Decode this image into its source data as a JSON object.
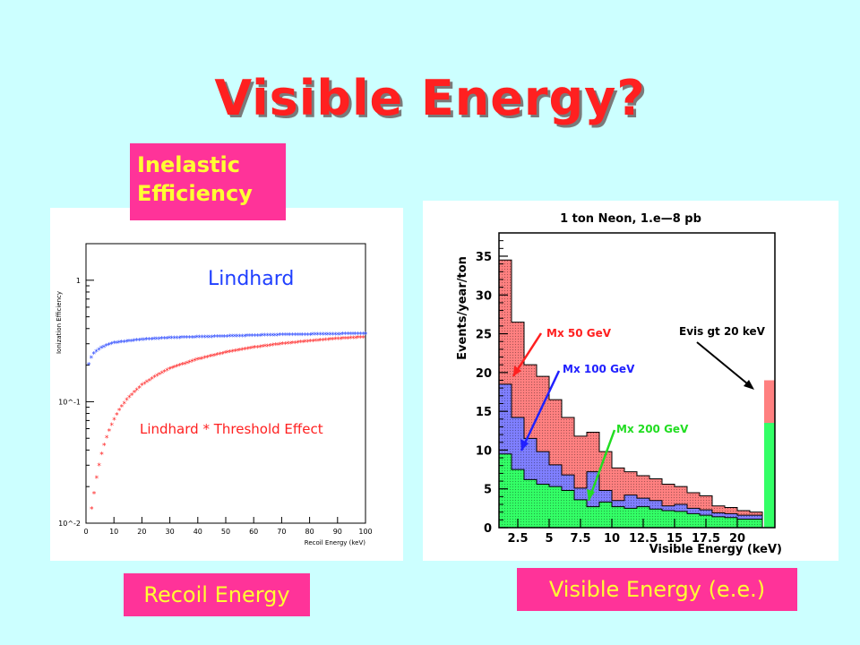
{
  "slide": {
    "title": "Visible Energy?",
    "label_inelastic": "Inelastic\nEfficiency",
    "label_recoil": "Recoil Energy",
    "label_visible": "Visible Energy (e.e.)"
  },
  "chart_data": [
    {
      "type": "scatter",
      "xlabel": "Recoil Energy (keV)",
      "ylabel": "Ionization Efficiency",
      "x_ticks": [
        0,
        10,
        20,
        30,
        40,
        50,
        60,
        70,
        80,
        90,
        100
      ],
      "xlim": [
        0,
        100
      ],
      "ylim": [
        0.01,
        2
      ],
      "y_scale": "log",
      "y_tick_labels": [
        {
          "value": 1,
          "label": "1"
        },
        {
          "value": 0.1,
          "label": "10^-1"
        },
        {
          "value": 0.01,
          "label": "10^-2"
        }
      ],
      "series": [
        {
          "name": "Lindhard",
          "color": "#1f3fff",
          "x": [
            1,
            2,
            3,
            5,
            8,
            10,
            15,
            20,
            30,
            40,
            50,
            60,
            70,
            80,
            90,
            100
          ],
          "y": [
            0.2,
            0.23,
            0.25,
            0.27,
            0.29,
            0.3,
            0.31,
            0.32,
            0.33,
            0.335,
            0.34,
            0.345,
            0.35,
            0.352,
            0.355,
            0.358
          ]
        },
        {
          "name": "Lindhard * Threshold Effect",
          "color": "#ff2020",
          "x": [
            2,
            3,
            4,
            5,
            6,
            8,
            10,
            12,
            15,
            20,
            25,
            30,
            40,
            50,
            60,
            70,
            80,
            90,
            100
          ],
          "y": [
            0.013,
            0.018,
            0.025,
            0.032,
            0.04,
            0.055,
            0.07,
            0.085,
            0.105,
            0.135,
            0.16,
            0.185,
            0.22,
            0.25,
            0.275,
            0.295,
            0.31,
            0.325,
            0.335
          ]
        }
      ],
      "annotations": [
        "Lindhard",
        "Lindhard * Threshold Effect"
      ]
    },
    {
      "type": "histogram",
      "title": "1 ton Neon, 1.e—8 pb",
      "xlabel": "Visible Energy (keV)",
      "ylabel": "Events/year/ton",
      "x_tick_labels": [
        {
          "value": 2.5,
          "label": "2.5"
        },
        {
          "value": 5,
          "label": "5"
        },
        {
          "value": 7.5,
          "label": "7.5"
        },
        {
          "value": 10,
          "label": "10"
        },
        {
          "value": 12.5,
          "label": "12.5"
        },
        {
          "value": 15,
          "label": "15"
        },
        {
          "value": 17.5,
          "label": "17.5"
        },
        {
          "value": 20,
          "label": "20"
        }
      ],
      "xlim": [
        1,
        23
      ],
      "ylim": [
        0,
        38
      ],
      "y_ticks": [
        0,
        5,
        10,
        15,
        20,
        25,
        30,
        35
      ],
      "bin_edges": [
        1,
        2,
        3,
        4,
        5,
        6,
        7,
        8,
        9,
        10,
        11,
        12,
        13,
        14,
        15,
        16,
        17,
        18,
        19,
        20,
        21,
        22
      ],
      "overflow_bin": [
        22,
        23
      ],
      "series": [
        {
          "name": "Mx 50 GeV",
          "color": "#ff8080",
          "values": [
            34.5,
            26.5,
            21,
            19.5,
            16.5,
            14.2,
            11.8,
            12.3,
            9.8,
            7.7,
            7.2,
            6.7,
            6.3,
            5.6,
            5.3,
            4.5,
            4.1,
            2.8,
            2.6,
            2.2,
            2.0
          ],
          "overflow": 19
        },
        {
          "name": "Mx 100 GeV",
          "color": "#7f7fff",
          "values": [
            18.5,
            14.2,
            11.5,
            9.8,
            8.1,
            6.8,
            5.1,
            7.2,
            4.8,
            3.5,
            4.2,
            3.8,
            3.5,
            2.8,
            3.0,
            2.5,
            2.3,
            1.9,
            1.8,
            1.6,
            1.6
          ],
          "overflow": 13.5
        },
        {
          "name": "Mx 200 GeV",
          "color": "#33ff66",
          "values": [
            9.5,
            7.5,
            6.2,
            5.6,
            5.3,
            4.8,
            3.6,
            2.7,
            3.3,
            2.7,
            2.5,
            2.7,
            2.4,
            2.2,
            2.1,
            1.8,
            1.6,
            1.4,
            1.3,
            1.1,
            1.1
          ],
          "overflow": 13.5
        }
      ],
      "annotations": [
        {
          "text": "Mx 50 GeV",
          "color": "#ff2020"
        },
        {
          "text": "Mx 100 GeV",
          "color": "#2020ff"
        },
        {
          "text": "Mx 200 GeV",
          "color": "#22dd22"
        },
        {
          "text": "Evis gt 20 keV",
          "color": "#000000"
        }
      ]
    }
  ]
}
